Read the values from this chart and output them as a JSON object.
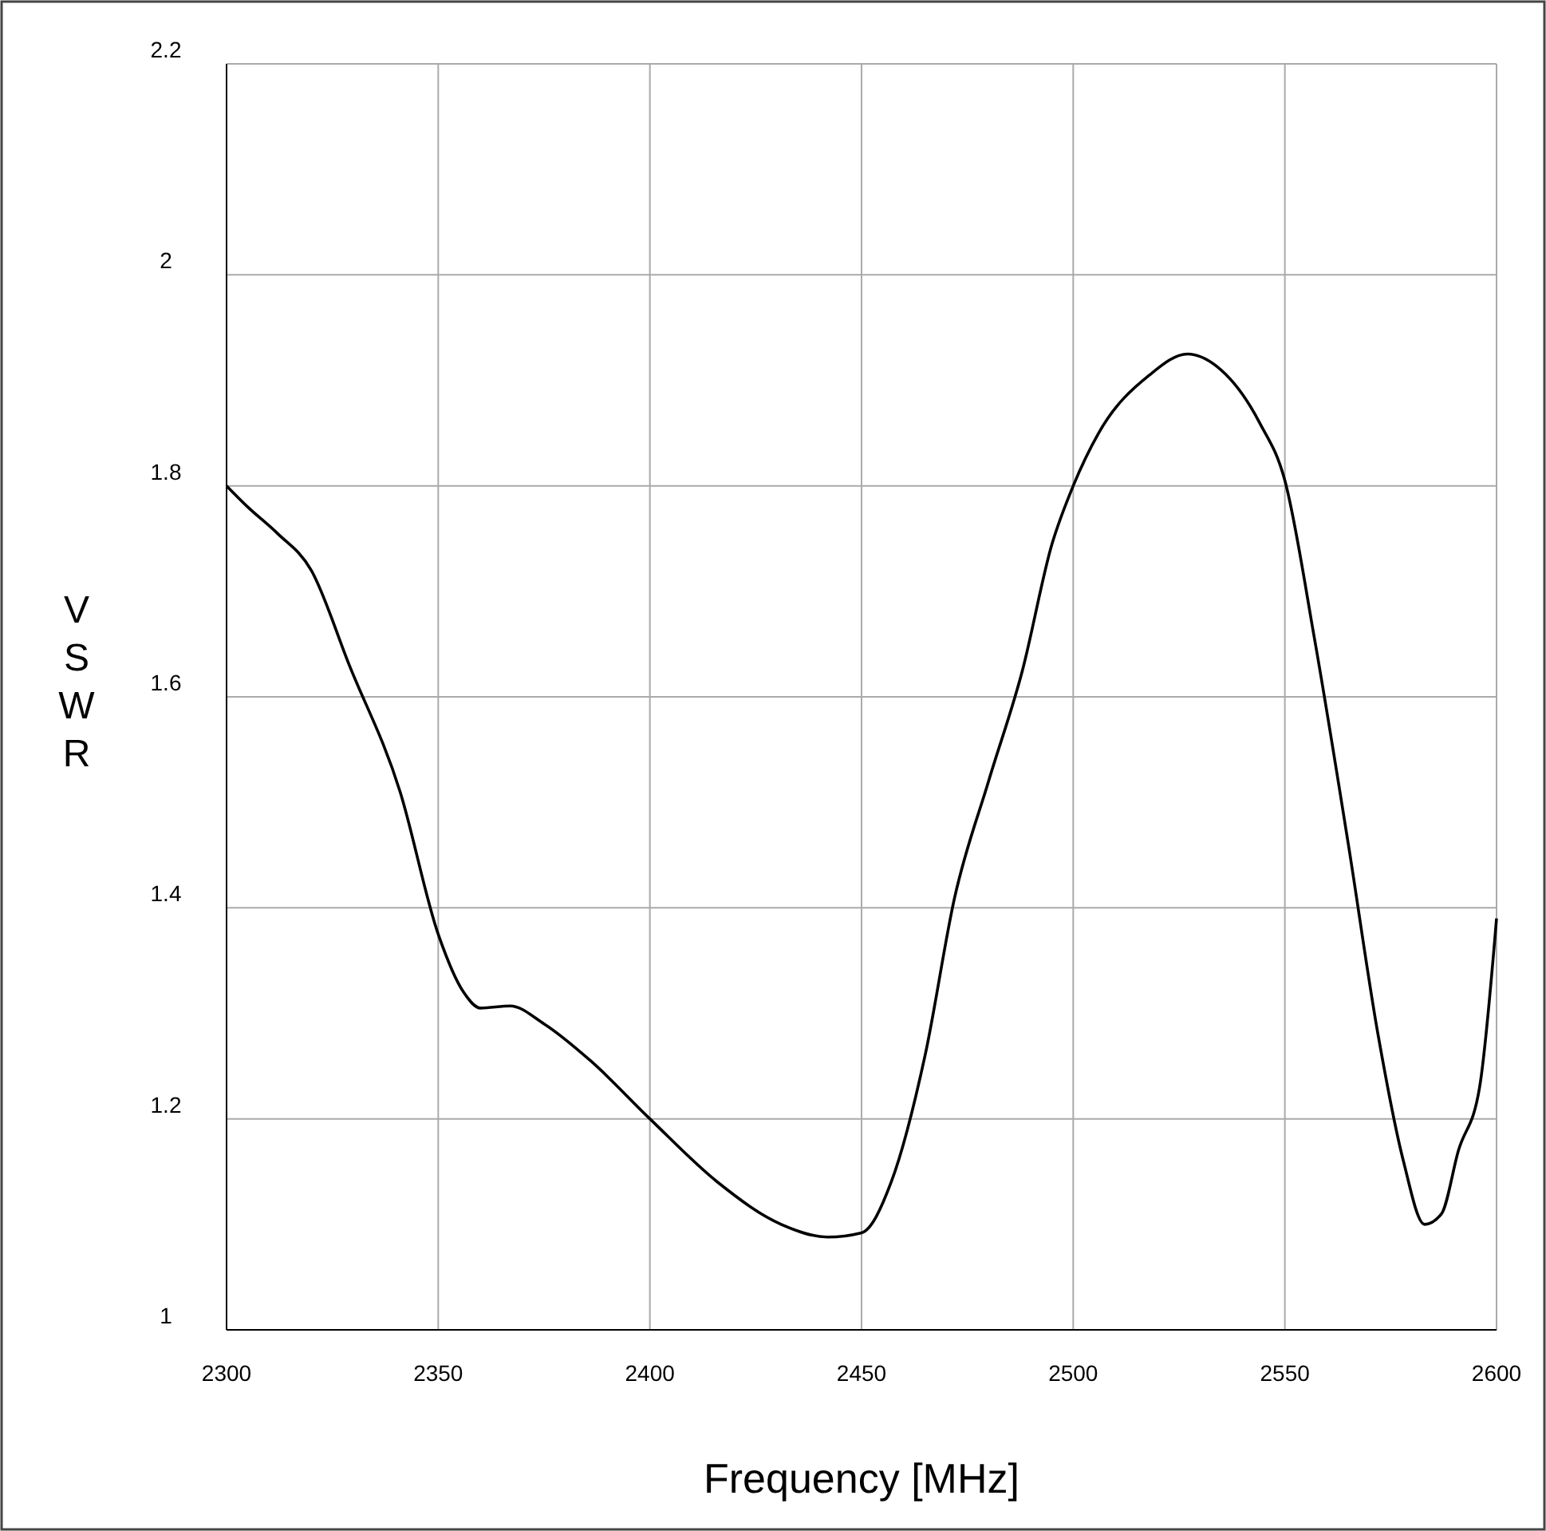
{
  "chart_data": {
    "type": "line",
    "xlabel": "Frequency [MHz]",
    "ylabel": "VSWR",
    "xlim": [
      2300,
      2600
    ],
    "ylim": [
      1,
      2.2
    ],
    "xticks": [
      2300,
      2350,
      2400,
      2450,
      2500,
      2550,
      2600
    ],
    "yticks": [
      1,
      1.2,
      1.4,
      1.6,
      1.8,
      2,
      2.2
    ],
    "grid": true,
    "series": [
      {
        "color": "#000000",
        "x": [
          2300,
          2305,
          2312,
          2320,
          2329,
          2341,
          2350,
          2356,
          2360,
          2367,
          2375,
          2386,
          2400,
          2416,
          2431,
          2442,
          2450,
          2457,
          2465,
          2472,
          2480,
          2488,
          2495,
          2500,
          2506,
          2518,
          2527,
          2534,
          2544,
          2550,
          2557,
          2565,
          2572,
          2578,
          2583,
          2587,
          2591,
          2596,
          2600
        ],
        "values": [
          1.8,
          1.78,
          1.755,
          1.72,
          1.63,
          1.51,
          1.375,
          1.32,
          1.305,
          1.307,
          1.29,
          1.255,
          1.2,
          1.14,
          1.1,
          1.088,
          1.092,
          1.14,
          1.26,
          1.41,
          1.52,
          1.625,
          1.745,
          1.8,
          1.85,
          1.905,
          1.925,
          1.913,
          1.86,
          1.805,
          1.655,
          1.46,
          1.28,
          1.16,
          1.1,
          1.11,
          1.17,
          1.23,
          1.39
        ]
      }
    ]
  }
}
